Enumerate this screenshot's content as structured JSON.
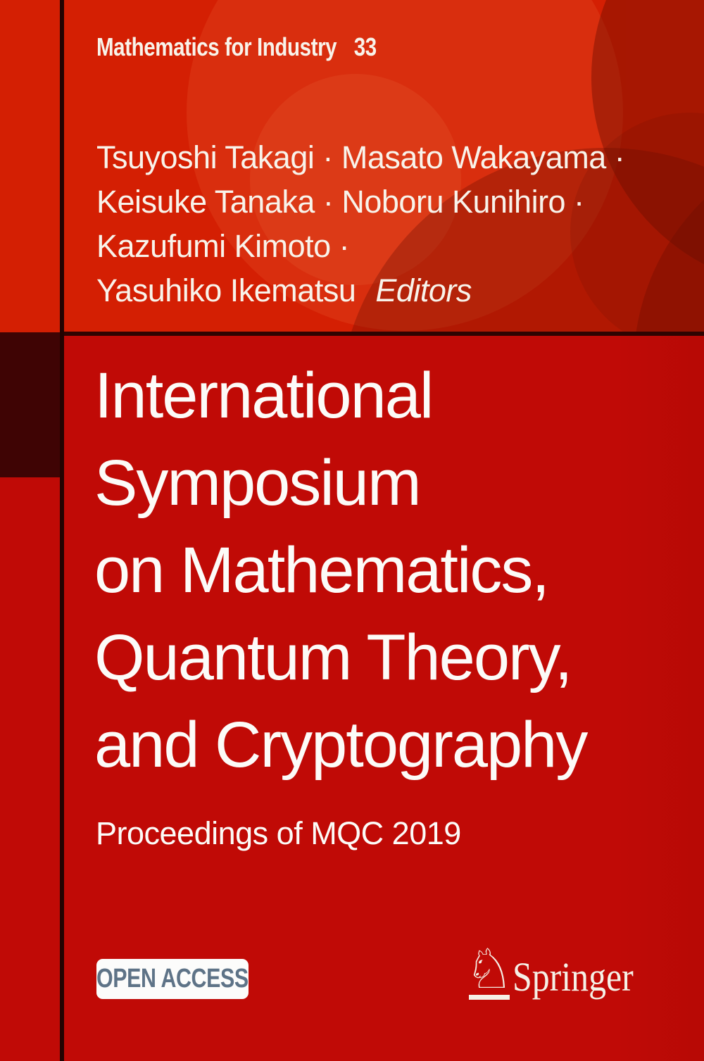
{
  "series": {
    "name": "Mathematics for Industry",
    "volume": "33"
  },
  "authors": {
    "lines": [
      "Tsuyoshi Takagi · Masato Wakayama ·",
      "Keisuke Tanaka · Noboru Kunihiro ·",
      "Kazufumi Kimoto ·",
      "Yasuhiko Ikematsu"
    ],
    "editors_label": "Editors"
  },
  "title": {
    "lines": [
      "International",
      "Symposium",
      "on Mathematics,",
      "Quantum Theory,",
      "and Cryptography"
    ]
  },
  "subtitle": "Proceedings of MQC 2019",
  "open_access_label": "OPEN ACCESS",
  "publisher": {
    "wordmark": "Springer",
    "horse_glyph": "♘"
  },
  "colors": {
    "header_red": "#d41f03",
    "panel_red": "#c00a06",
    "maroon_block": "#3f0404",
    "divider_line": "#230301",
    "text_warm_white": "#f8f3ea",
    "open_access_text": "#5e7387"
  }
}
